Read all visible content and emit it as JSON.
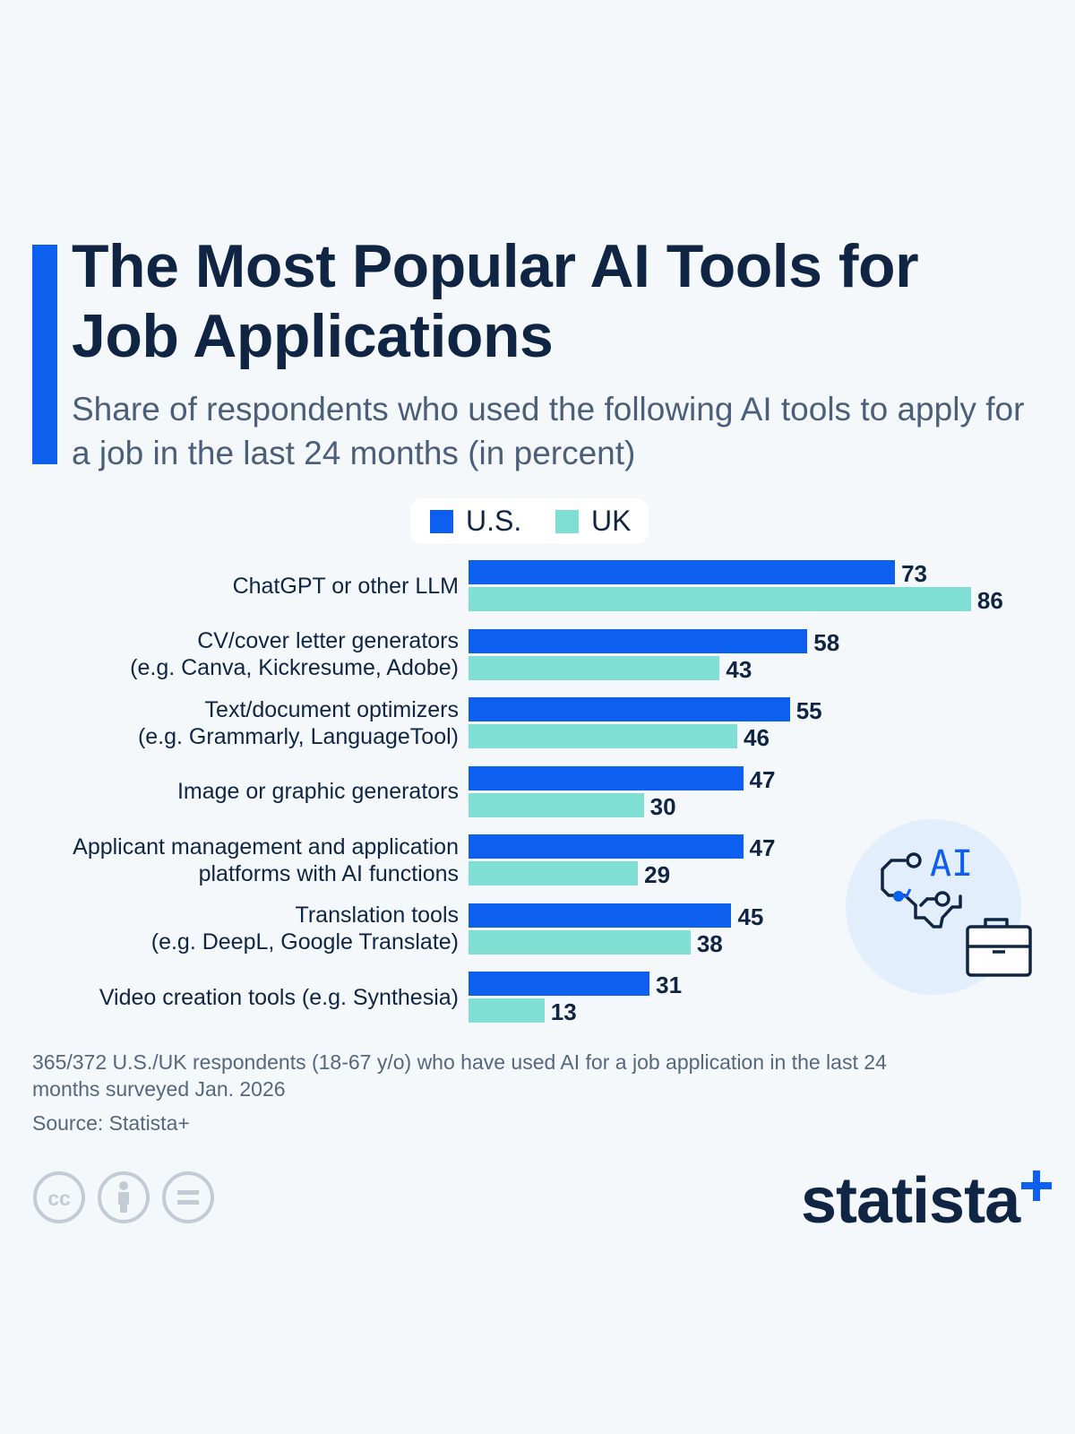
{
  "title": "The Most Popular AI Tools for Job Applications",
  "subtitle": "Share of respondents who used the following AI tools to apply for a job in the last 24 months (in percent)",
  "legend": [
    {
      "label": "U.S.",
      "color": "#0d5ff0"
    },
    {
      "label": "UK",
      "color": "#7fdfd5"
    }
  ],
  "chart_data": {
    "type": "bar",
    "orientation": "horizontal",
    "categories": [
      [
        "ChatGPT or other LLM"
      ],
      [
        "CV/cover letter generators",
        "(e.g. Canva, Kickresume, Adobe)"
      ],
      [
        "Text/document optimizers",
        "(e.g. Grammarly, LanguageTool)"
      ],
      [
        "Image or graphic generators"
      ],
      [
        "Applicant management and application",
        "platforms with AI functions"
      ],
      [
        "Translation tools",
        "(e.g. DeepL, Google Translate)"
      ],
      [
        "Video creation tools (e.g. Synthesia)"
      ]
    ],
    "series": [
      {
        "name": "U.S.",
        "color": "#0d5ff0",
        "values": [
          73,
          58,
          55,
          47,
          47,
          45,
          31
        ]
      },
      {
        "name": "UK",
        "color": "#7fdfd5",
        "values": [
          86,
          43,
          46,
          30,
          29,
          38,
          13
        ]
      }
    ],
    "xlim": [
      0,
      92
    ],
    "grid": false,
    "legend_position": "top-center",
    "data_labels": true
  },
  "illustration": {
    "badge_text": "AI",
    "icons": [
      "chip-circuit-icon",
      "briefcase-icon"
    ]
  },
  "footnote": "365/372 U.S./UK respondents (18-67 y/o) who have used AI for a job application in the last 24 months surveyed Jan. 2026",
  "source": "Source: Statista+",
  "license_icons": [
    "creative-commons-icon",
    "attribution-icon",
    "no-derivatives-icon"
  ],
  "brand": {
    "name": "statista",
    "plus_color": "#0d5ff0"
  }
}
